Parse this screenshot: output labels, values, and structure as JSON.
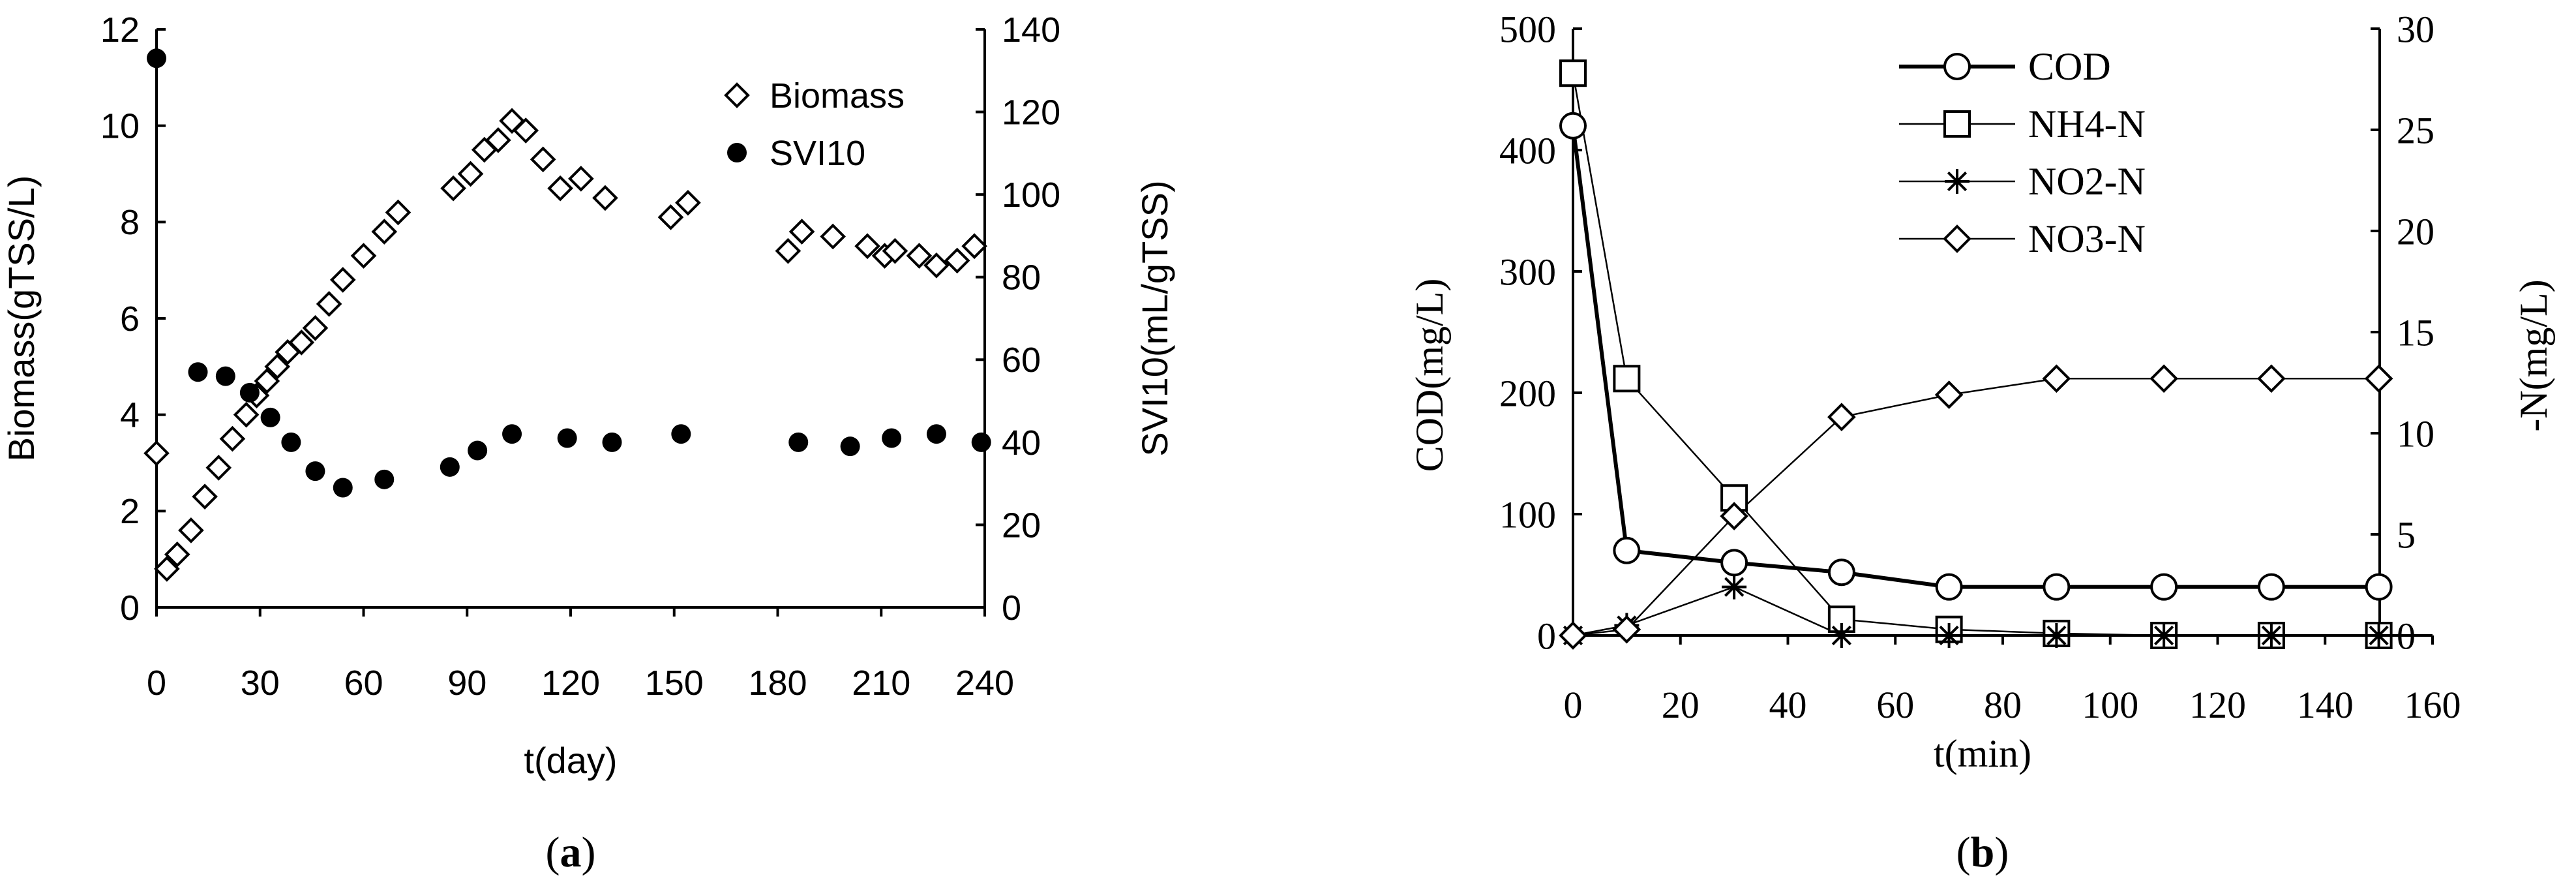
{
  "chart_data": [
    {
      "panel_label": "a",
      "type": "scatter",
      "title": "",
      "xlabel": "t(day)",
      "ylabel": "Biomass(gTSS/L)",
      "y2label": "SVI10(mL/gTSS)",
      "xlim": [
        0,
        240
      ],
      "ylim": [
        0,
        12
      ],
      "y2lim": [
        0,
        140
      ],
      "xticks": [
        "0",
        "30",
        "60",
        "90",
        "120",
        "150",
        "180",
        "210",
        "240"
      ],
      "yticks": [
        "0",
        "2",
        "4",
        "6",
        "8",
        "10",
        "12"
      ],
      "y2ticks": [
        "0",
        "20",
        "40",
        "60",
        "80",
        "100",
        "120",
        "140"
      ],
      "legend_position": "top-right",
      "series": [
        {
          "name": "Biomass",
          "axis": "left",
          "marker": "diamond-open",
          "x": [
            0,
            3,
            6,
            10,
            14,
            18,
            22,
            26,
            29,
            32,
            35,
            38,
            42,
            46,
            50,
            54,
            60,
            66,
            70,
            86,
            91,
            95,
            99,
            103,
            107,
            112,
            117,
            123,
            130,
            149,
            154,
            183,
            187,
            196,
            206,
            211,
            214,
            221,
            226,
            232,
            237
          ],
          "y": [
            3.2,
            0.8,
            1.1,
            1.6,
            2.3,
            2.9,
            3.5,
            4.0,
            4.4,
            4.7,
            5.0,
            5.3,
            5.5,
            5.8,
            6.3,
            6.8,
            7.3,
            7.8,
            8.2,
            8.7,
            9.0,
            9.5,
            9.7,
            10.1,
            9.9,
            9.3,
            8.7,
            8.9,
            8.5,
            8.1,
            8.4,
            7.4,
            7.8,
            7.7,
            7.5,
            7.3,
            7.4,
            7.3,
            7.1,
            7.2,
            7.5
          ]
        },
        {
          "name": "SVI10",
          "axis": "right",
          "marker": "circle-filled",
          "x": [
            0,
            12,
            20,
            27,
            33,
            39,
            46,
            54,
            66,
            85,
            93,
            103,
            119,
            132,
            152,
            186,
            201,
            213,
            226,
            239
          ],
          "y": [
            133,
            57,
            56,
            52,
            46,
            40,
            33,
            29,
            31,
            34,
            38,
            42,
            41,
            40,
            42,
            40,
            39,
            41,
            42,
            40
          ]
        }
      ]
    },
    {
      "panel_label": "b",
      "type": "line",
      "title": "",
      "xlabel": "t(min)",
      "ylabel": "COD(mg/L)",
      "y2label": "-N(mg/L)",
      "xlim": [
        0,
        160
      ],
      "ylim": [
        0,
        500
      ],
      "y2lim": [
        0,
        30
      ],
      "xticks": [
        "0",
        "20",
        "40",
        "60",
        "80",
        "100",
        "120",
        "140",
        "160"
      ],
      "yticks": [
        "0",
        "100",
        "200",
        "300",
        "400",
        "500"
      ],
      "y2ticks": [
        "0",
        "5",
        "10",
        "15",
        "20",
        "25",
        "30"
      ],
      "legend_position": "top-center",
      "series": [
        {
          "name": "COD",
          "axis": "left",
          "marker": "circle-open",
          "x": [
            0,
            10,
            30,
            50,
            70,
            90,
            110,
            130,
            150
          ],
          "y": [
            420,
            70,
            60,
            52,
            40,
            40,
            40,
            40,
            40
          ]
        },
        {
          "name": "NH4-N",
          "axis": "right",
          "marker": "square-open",
          "x": [
            0,
            10,
            30,
            50,
            70,
            90,
            110,
            130,
            150
          ],
          "y": [
            27.8,
            12.7,
            6.8,
            0.8,
            0.3,
            0.1,
            0,
            0,
            0
          ]
        },
        {
          "name": "NO2-N",
          "axis": "right",
          "marker": "star",
          "x": [
            0,
            10,
            30,
            50,
            70,
            90,
            110,
            130,
            150
          ],
          "y": [
            0,
            0.5,
            2.4,
            0,
            0,
            0,
            0,
            0,
            0
          ]
        },
        {
          "name": "NO3-N",
          "axis": "right",
          "marker": "diamond-open",
          "x": [
            0,
            10,
            30,
            50,
            70,
            90,
            110,
            130,
            150
          ],
          "y": [
            0,
            0.3,
            5.9,
            10.8,
            11.9,
            12.7,
            12.7,
            12.7,
            12.7
          ]
        }
      ]
    }
  ]
}
